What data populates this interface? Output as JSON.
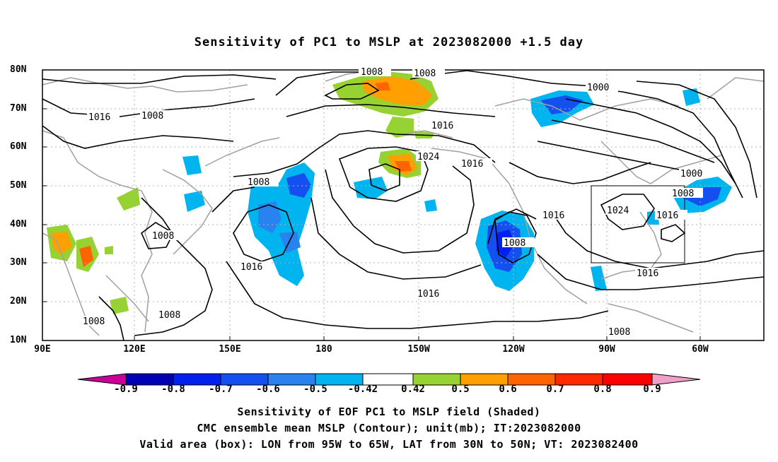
{
  "title": "Sensitivity of PC1 to MSLP at 2023082000 +1.5 day",
  "lat_labels": [
    "80N",
    "70N",
    "60N",
    "50N",
    "40N",
    "30N",
    "20N",
    "10N"
  ],
  "lon_labels": [
    "90E",
    "120E",
    "150E",
    "180",
    "150W",
    "120W",
    "90W",
    "60W"
  ],
  "colorbar": {
    "labels": [
      "-0.9",
      "-0.8",
      "-0.7",
      "-0.6",
      "-0.5",
      "-0.42",
      "0.42",
      "0.5",
      "0.6",
      "0.7",
      "0.8",
      "0.9"
    ],
    "colors": [
      "#0000b4",
      "#0020f0",
      "#1450f0",
      "#2882f0",
      "#00b4f0",
      "#ffffff",
      "#96d232",
      "#ffa000",
      "#ff6400",
      "#ff2800",
      "#ff0000"
    ],
    "end_low": "#c80096",
    "end_high": "#f0a0c8"
  },
  "contour_labels": [
    "1008",
    "1008",
    "1016",
    "1008",
    "1000",
    "1016",
    "1024",
    "1016",
    "1008",
    "1008",
    "1000",
    "1008",
    "1024",
    "1016",
    "1016",
    "1008",
    "1016",
    "1008",
    "1016",
    "1008",
    "1016",
    "1008"
  ],
  "footer": {
    "line1": "Sensitivity of EOF PC1 to MSLP field (Shaded)",
    "line2": "CMC ensemble mean MSLP (Contour); unit(mb); IT:2023082000",
    "line3": "Valid area (box): LON from 95W to 65W, LAT from 30N to 50N; VT: 2023082400"
  },
  "colors": {
    "contour": "#000000",
    "coast": "#a0a0a0",
    "grid": "#b0b0b0"
  },
  "valid_box": {
    "lon": [
      -95,
      -65
    ],
    "lat": [
      30,
      50
    ]
  }
}
